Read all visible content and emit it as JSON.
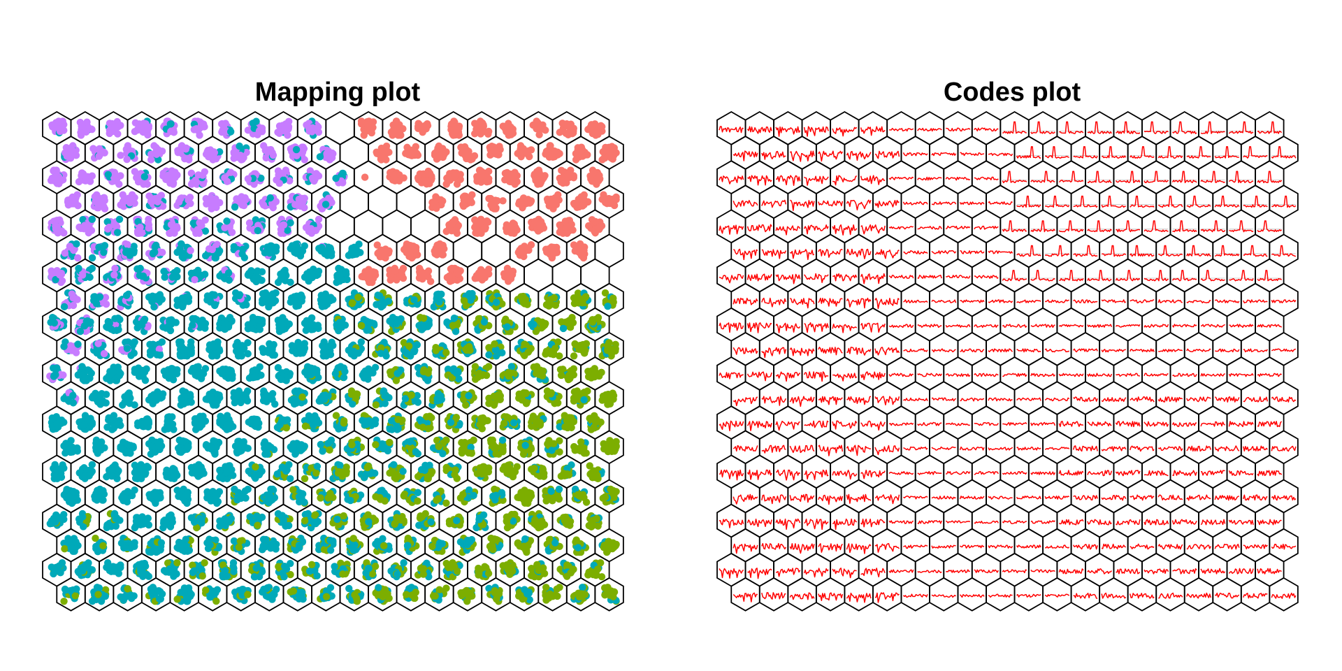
{
  "figure": {
    "left_title": "Mapping plot",
    "right_title": "Codes plot"
  },
  "colors": {
    "background": "#ffffff",
    "hex_border": "#000000",
    "cluster_salmon": "#F8766D",
    "cluster_violet": "#C77CFF",
    "cluster_teal": "#00A9B9",
    "cluster_olive": "#7CAE00",
    "codes_line": "#FF0000",
    "codes_baseline": "#BEBEBE"
  },
  "chart_data": [
    {
      "type": "scatter",
      "title": "Mapping plot",
      "grid": "hexagonal",
      "grid_cols": 20,
      "grid_rows": 20,
      "legend": "none",
      "series": [
        {
          "color": "#C77CFF",
          "region": "top-left"
        },
        {
          "color": "#F8766D",
          "region": "top-right"
        },
        {
          "color": "#00A9B9",
          "region": "center-left"
        },
        {
          "color": "#7CAE00",
          "region": "bottom-right"
        }
      ],
      "empty_cells": [
        [
          0,
          10
        ],
        [
          1,
          10
        ],
        [
          2,
          11
        ],
        [
          3,
          10
        ],
        [
          3,
          11
        ],
        [
          3,
          12
        ],
        [
          4,
          10
        ],
        [
          4,
          11
        ],
        [
          4,
          12
        ],
        [
          4,
          13
        ],
        [
          5,
          14
        ],
        [
          5,
          15
        ],
        [
          6,
          17
        ],
        [
          6,
          18
        ],
        [
          6,
          19
        ],
        [
          5,
          19
        ]
      ]
    },
    {
      "type": "line",
      "title": "Codes plot",
      "grid": "hexagonal",
      "grid_cols": 20,
      "grid_rows": 20,
      "legend": "none",
      "line_color": "#FF0000",
      "description_of_pattern": "codebook vectors; top-right cells show tall spikes, left cells jagged, bottom-right cells dense noise"
    }
  ]
}
